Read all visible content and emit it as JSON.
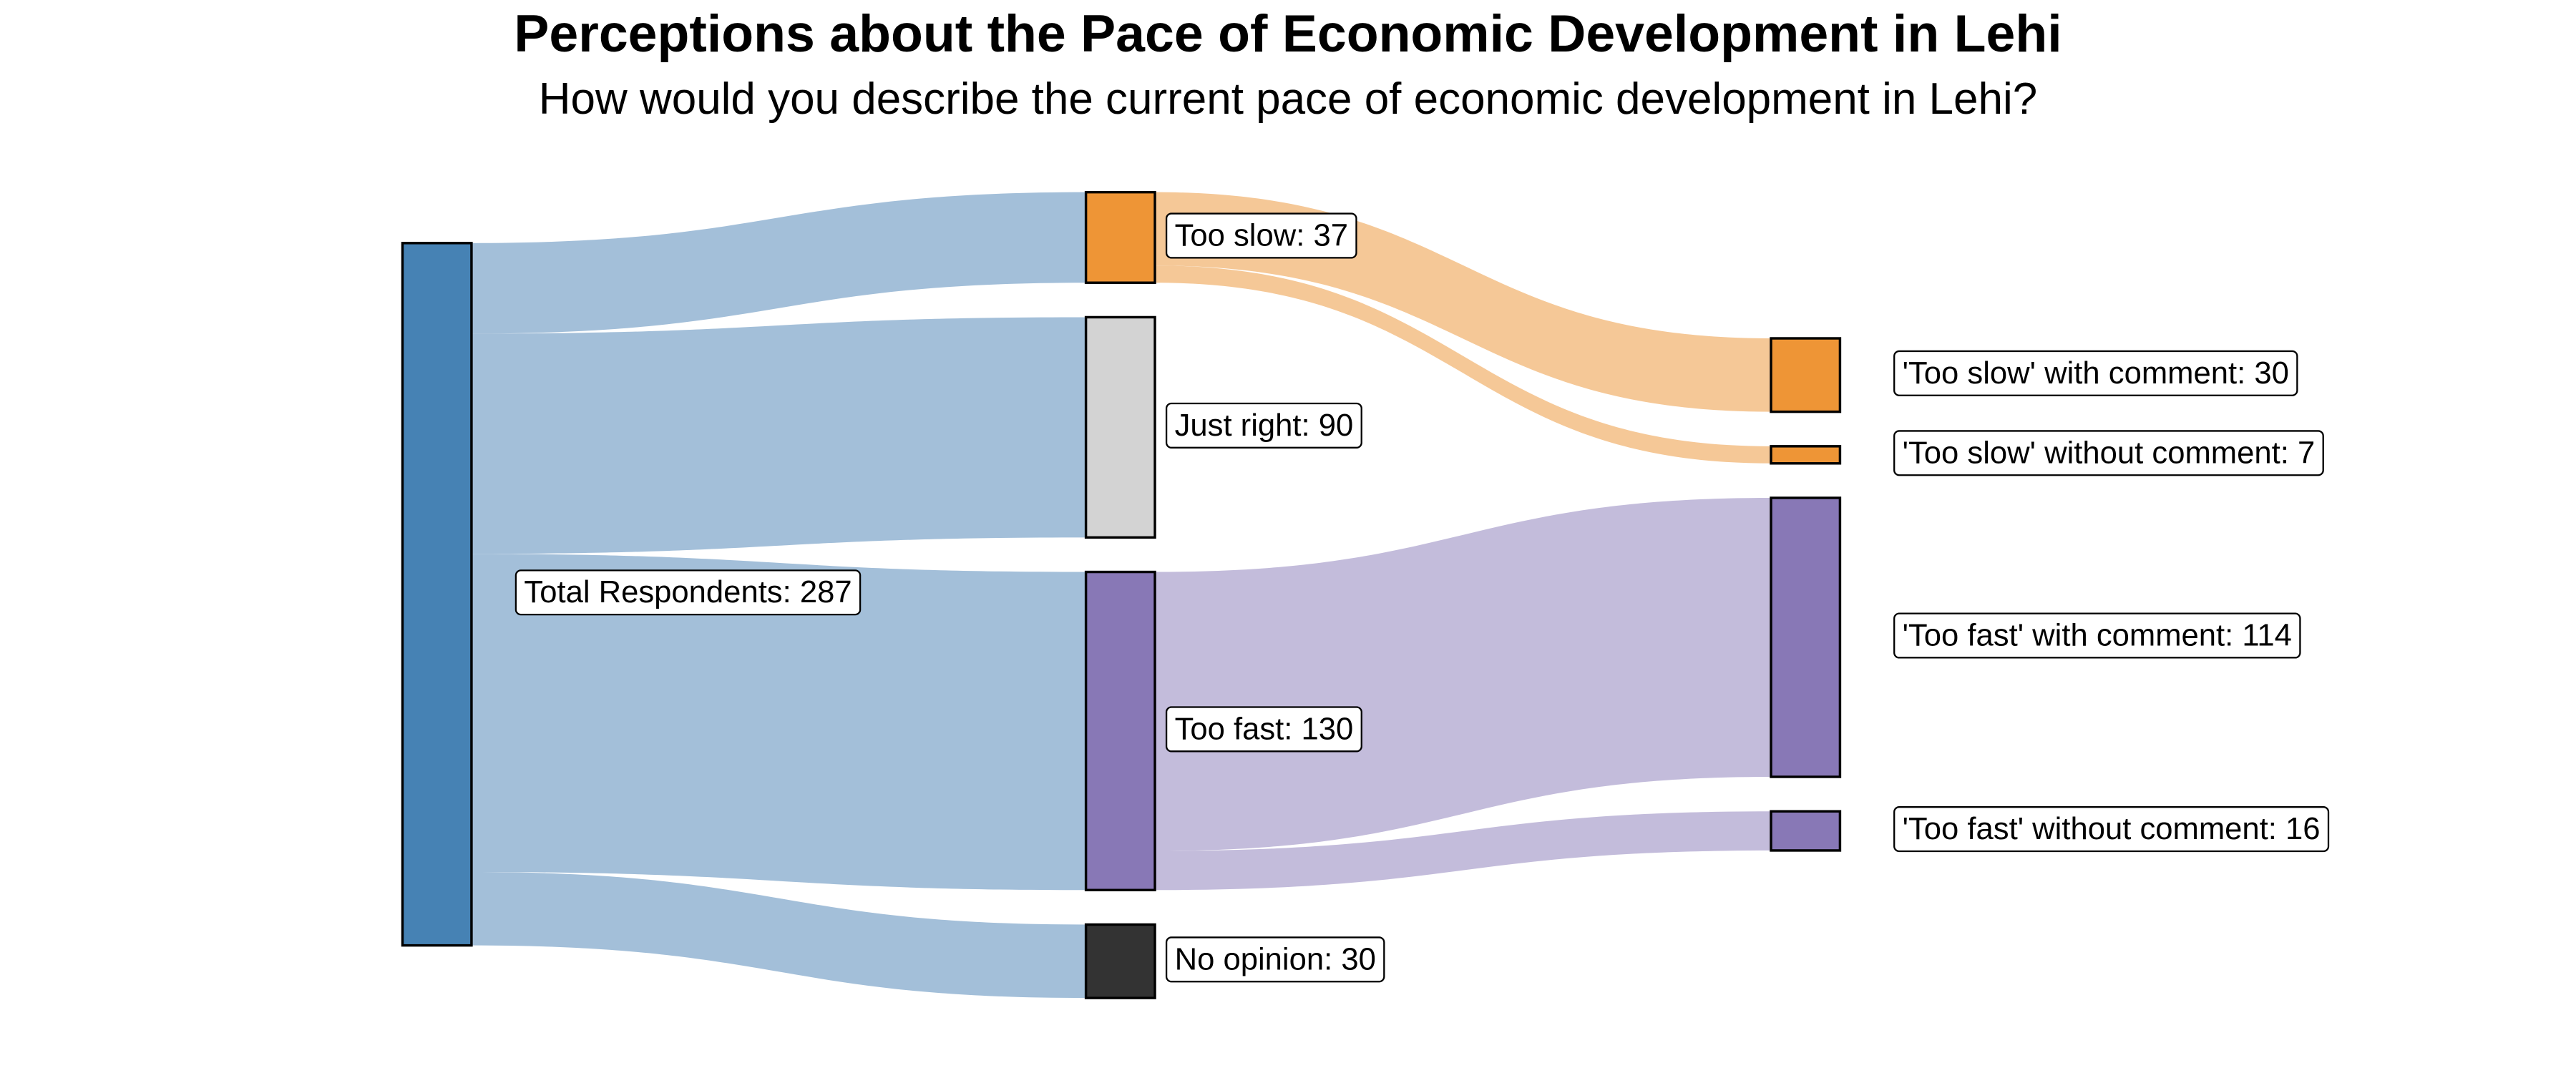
{
  "chart_data": {
    "type": "sankey",
    "title": "Perceptions about the Pace of Economic Development in Lehi",
    "subtitle": "How would you describe the current pace of economic development in Lehi?",
    "nodes": [
      {
        "label": "Total Respondents: 287",
        "value": 287,
        "color": "#4682b4"
      },
      {
        "label": "Too slow: 37",
        "value": 37,
        "color": "#ee9536"
      },
      {
        "label": "Just right: 90",
        "value": 90,
        "color": "#d3d3d3"
      },
      {
        "label": "Too fast: 130",
        "value": 130,
        "color": "#8878b6"
      },
      {
        "label": "No opinion: 30",
        "value": 30,
        "color": "#333333"
      },
      {
        "label": "'Too slow' with comment: 30",
        "value": 30,
        "color": "#ee9536"
      },
      {
        "label": "'Too slow' without comment: 7",
        "value": 7,
        "color": "#ee9536"
      },
      {
        "label": "'Too fast' with comment: 114",
        "value": 114,
        "color": "#8878b6"
      },
      {
        "label": "'Too fast' without comment: 16",
        "value": 16,
        "color": "#8878b6"
      }
    ],
    "links": [
      {
        "source": 0,
        "target": 1,
        "value": 37,
        "color": "#a3bfd9"
      },
      {
        "source": 0,
        "target": 2,
        "value": 90,
        "color": "#a3bfd9"
      },
      {
        "source": 0,
        "target": 3,
        "value": 130,
        "color": "#a3bfd9"
      },
      {
        "source": 0,
        "target": 4,
        "value": 30,
        "color": "#a3bfd9"
      },
      {
        "source": 1,
        "target": 5,
        "value": 30,
        "color": "#f5c897"
      },
      {
        "source": 1,
        "target": 6,
        "value": 7,
        "color": "#f5c897"
      },
      {
        "source": 3,
        "target": 7,
        "value": 114,
        "color": "#c3bcdb"
      },
      {
        "source": 3,
        "target": 8,
        "value": 16,
        "color": "#c3bcdb"
      }
    ]
  }
}
